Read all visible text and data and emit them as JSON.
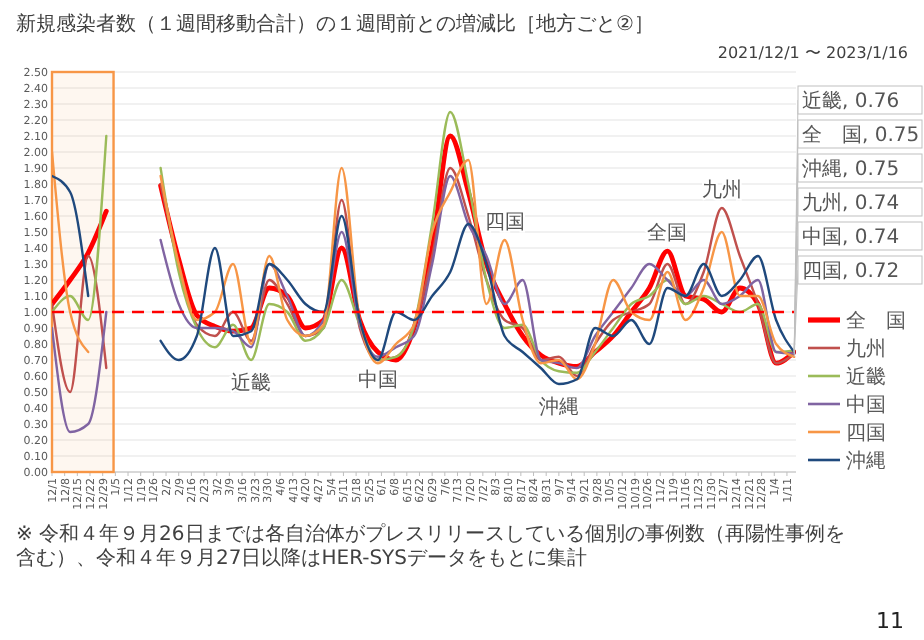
{
  "chart_data": {
    "type": "line",
    "title": "新規感染者数（１週間移動合計）の１週間前との増減比［地方ごと②］",
    "subtitle": "2021/12/1 〜 2023/1/16",
    "x": [
      "2021-12-01",
      "2021-12-11",
      "2021-12-21",
      "2021-12-31",
      "2022-01-10",
      "2022-01-20",
      "2022-01-30",
      "2022-02-09",
      "2022-02-19",
      "2022-03-01",
      "2022-03-11",
      "2022-03-21",
      "2022-03-31",
      "2022-04-10",
      "2022-04-20",
      "2022-04-30",
      "2022-05-10",
      "2022-05-20",
      "2022-05-30",
      "2022-06-09",
      "2022-06-19",
      "2022-06-29",
      "2022-07-09",
      "2022-07-19",
      "2022-07-29",
      "2022-08-08",
      "2022-08-18",
      "2022-08-28",
      "2022-09-07",
      "2022-09-17",
      "2022-09-27",
      "2022-10-07",
      "2022-10-17",
      "2022-10-27",
      "2022-11-06",
      "2022-11-16",
      "2022-11-26",
      "2022-12-06",
      "2022-12-16",
      "2022-12-26",
      "2023-01-05",
      "2023-01-15"
    ],
    "series": [
      {
        "name": "全　国",
        "color": "#ff0000",
        "values": [
          1.05,
          1.2,
          1.37,
          1.63,
          null,
          null,
          1.79,
          1.33,
          0.98,
          0.91,
          0.88,
          0.9,
          1.15,
          1.1,
          0.9,
          0.95,
          1.4,
          0.95,
          0.75,
          0.7,
          0.9,
          1.4,
          2.1,
          1.75,
          1.3,
          1.05,
          0.85,
          0.73,
          0.68,
          0.66,
          0.75,
          0.85,
          1.0,
          1.15,
          1.38,
          1.1,
          1.08,
          1.0,
          1.15,
          1.05,
          0.68,
          0.75
        ]
      },
      {
        "name": "九州",
        "color": "#c0504d",
        "values": [
          1.05,
          0.5,
          1.35,
          0.65,
          null,
          null,
          1.8,
          1.3,
          0.92,
          0.85,
          1.0,
          0.82,
          1.2,
          1.05,
          0.85,
          0.9,
          1.7,
          0.9,
          0.7,
          0.72,
          0.9,
          1.35,
          1.9,
          1.6,
          1.2,
          0.95,
          0.9,
          0.7,
          0.72,
          0.6,
          0.8,
          0.95,
          1.0,
          1.05,
          1.3,
          1.05,
          1.25,
          1.65,
          1.35,
          1.05,
          0.68,
          0.74
        ]
      },
      {
        "name": "近畿",
        "color": "#9bbb59",
        "values": [
          1.0,
          1.1,
          0.95,
          2.1,
          null,
          null,
          1.9,
          1.25,
          0.9,
          0.78,
          0.92,
          0.7,
          1.05,
          1.0,
          0.82,
          0.9,
          1.2,
          0.92,
          0.7,
          0.72,
          0.92,
          1.55,
          2.25,
          1.8,
          1.2,
          0.9,
          0.92,
          0.7,
          0.63,
          0.62,
          0.75,
          0.9,
          1.05,
          1.1,
          1.2,
          1.05,
          1.1,
          1.05,
          1.0,
          1.05,
          0.75,
          0.76
        ]
      },
      {
        "name": "中国",
        "color": "#8064a2",
        "values": [
          0.9,
          0.25,
          0.3,
          1.0,
          null,
          null,
          1.45,
          1.05,
          0.9,
          0.9,
          0.88,
          0.78,
          1.3,
          1.1,
          0.85,
          0.95,
          1.5,
          0.92,
          0.72,
          0.78,
          0.85,
          1.3,
          1.85,
          1.55,
          1.35,
          1.05,
          1.2,
          0.7,
          0.68,
          0.65,
          0.85,
          1.0,
          1.15,
          1.3,
          1.2,
          1.1,
          1.2,
          1.05,
          1.1,
          1.2,
          0.75,
          0.74
        ]
      },
      {
        "name": "四国",
        "color": "#f79646",
        "values": [
          2.0,
          1.0,
          0.75,
          null,
          null,
          null,
          1.85,
          1.3,
          0.95,
          1.0,
          1.3,
          0.8,
          1.35,
          0.95,
          0.85,
          0.92,
          1.9,
          0.95,
          0.68,
          0.8,
          0.92,
          1.5,
          1.75,
          1.95,
          1.05,
          1.45,
          0.95,
          0.68,
          0.7,
          0.58,
          0.8,
          1.2,
          1.0,
          0.95,
          1.25,
          0.95,
          1.15,
          1.5,
          1.1,
          1.1,
          0.8,
          0.72
        ]
      },
      {
        "name": "沖縄",
        "color": "#1f497d",
        "values": [
          1.85,
          1.75,
          1.1,
          null,
          null,
          null,
          0.82,
          0.7,
          0.85,
          1.4,
          0.85,
          0.88,
          1.3,
          1.2,
          1.05,
          1.0,
          1.6,
          0.95,
          0.7,
          1.0,
          0.95,
          1.1,
          1.25,
          1.55,
          1.3,
          0.85,
          0.75,
          0.65,
          0.55,
          0.58,
          0.9,
          0.85,
          0.95,
          0.8,
          1.15,
          1.1,
          1.3,
          1.1,
          1.2,
          1.35,
          0.95,
          0.75
        ]
      }
    ],
    "xlim": [
      "2021-12-01",
      "2023-01-16"
    ],
    "xticks": [
      {
        "value": "2021-12-01",
        "label": "12/1"
      },
      {
        "value": "2021-12-08",
        "label": "12/8"
      },
      {
        "value": "2021-12-15",
        "label": "12/15"
      },
      {
        "value": "2021-12-22",
        "label": "12/22"
      },
      {
        "value": "2021-12-29",
        "label": "12/29"
      },
      {
        "value": "2022-01-05",
        "label": "1/5"
      },
      {
        "value": "2022-01-12",
        "label": "1/12"
      },
      {
        "value": "2022-01-19",
        "label": "1/19"
      },
      {
        "value": "2022-01-26",
        "label": "1/26"
      },
      {
        "value": "2022-02-02",
        "label": "2/2"
      },
      {
        "value": "2022-02-09",
        "label": "2/9"
      },
      {
        "value": "2022-02-16",
        "label": "2/16"
      },
      {
        "value": "2022-02-23",
        "label": "2/23"
      },
      {
        "value": "2022-03-02",
        "label": "3/2"
      },
      {
        "value": "2022-03-09",
        "label": "3/9"
      },
      {
        "value": "2022-03-16",
        "label": "3/16"
      },
      {
        "value": "2022-03-23",
        "label": "3/23"
      },
      {
        "value": "2022-03-30",
        "label": "3/30"
      },
      {
        "value": "2022-04-06",
        "label": "4/6"
      },
      {
        "value": "2022-04-13",
        "label": "4/13"
      },
      {
        "value": "2022-04-20",
        "label": "4/20"
      },
      {
        "value": "2022-04-27",
        "label": "4/27"
      },
      {
        "value": "2022-05-04",
        "label": "5/4"
      },
      {
        "value": "2022-05-11",
        "label": "5/11"
      },
      {
        "value": "2022-05-18",
        "label": "5/18"
      },
      {
        "value": "2022-05-25",
        "label": "5/25"
      },
      {
        "value": "2022-06-01",
        "label": "6/1"
      },
      {
        "value": "2022-06-08",
        "label": "6/8"
      },
      {
        "value": "2022-06-15",
        "label": "6/15"
      },
      {
        "value": "2022-06-22",
        "label": "6/22"
      },
      {
        "value": "2022-06-29",
        "label": "6/29"
      },
      {
        "value": "2022-07-06",
        "label": "7/6"
      },
      {
        "value": "2022-07-13",
        "label": "7/13"
      },
      {
        "value": "2022-07-20",
        "label": "7/20"
      },
      {
        "value": "2022-07-27",
        "label": "7/27"
      },
      {
        "value": "2022-08-03",
        "label": "8/3"
      },
      {
        "value": "2022-08-10",
        "label": "8/10"
      },
      {
        "value": "2022-08-17",
        "label": "8/17"
      },
      {
        "value": "2022-08-24",
        "label": "8/24"
      },
      {
        "value": "2022-08-31",
        "label": "8/31"
      },
      {
        "value": "2022-09-07",
        "label": "9/7"
      },
      {
        "value": "2022-09-14",
        "label": "9/14"
      },
      {
        "value": "2022-09-21",
        "label": "9/21"
      },
      {
        "value": "2022-09-28",
        "label": "9/28"
      },
      {
        "value": "2022-10-05",
        "label": "10/5"
      },
      {
        "value": "2022-10-12",
        "label": "10/12"
      },
      {
        "value": "2022-10-19",
        "label": "10/19"
      },
      {
        "value": "2022-10-26",
        "label": "10/26"
      },
      {
        "value": "2022-11-02",
        "label": "11/2"
      },
      {
        "value": "2022-11-09",
        "label": "11/9"
      },
      {
        "value": "2022-11-16",
        "label": "11/16"
      },
      {
        "value": "2022-11-23",
        "label": "11/23"
      },
      {
        "value": "2022-11-30",
        "label": "11/30"
      },
      {
        "value": "2022-12-07",
        "label": "12/7"
      },
      {
        "value": "2022-12-14",
        "label": "12/14"
      },
      {
        "value": "2022-12-21",
        "label": "12/21"
      },
      {
        "value": "2022-12-28",
        "label": "12/28"
      },
      {
        "value": "2023-01-04",
        "label": "1/4"
      },
      {
        "value": "2023-01-11",
        "label": "1/11"
      }
    ],
    "ylim": [
      0,
      2.5
    ],
    "yticks": [
      {
        "value": 0,
        "label": "0.00"
      },
      {
        "value": 0.1,
        "label": "0.10"
      },
      {
        "value": 0.2,
        "label": "0.20"
      },
      {
        "value": 0.3,
        "label": "0.30"
      },
      {
        "value": 0.4,
        "label": "0.40"
      },
      {
        "value": 0.5,
        "label": "0.50"
      },
      {
        "value": 0.6,
        "label": "0.60"
      },
      {
        "value": 0.7,
        "label": "0.70"
      },
      {
        "value": 0.8,
        "label": "0.80"
      },
      {
        "value": 0.9,
        "label": "0.90"
      },
      {
        "value": 1,
        "label": "1.00"
      },
      {
        "value": 1.1,
        "label": "1.10"
      },
      {
        "value": 1.2,
        "label": "1.20"
      },
      {
        "value": 1.3,
        "label": "1.30"
      },
      {
        "value": 1.4,
        "label": "1.40"
      },
      {
        "value": 1.5,
        "label": "1.50"
      },
      {
        "value": 1.6,
        "label": "1.60"
      },
      {
        "value": 1.7,
        "label": "1.70"
      },
      {
        "value": 1.8,
        "label": "1.80"
      },
      {
        "value": 1.9,
        "label": "1.90"
      },
      {
        "value": 2,
        "label": "2.00"
      },
      {
        "value": 2.1,
        "label": "2.10"
      },
      {
        "value": 2.2,
        "label": "2.20"
      },
      {
        "value": 2.3,
        "label": "2.30"
      },
      {
        "value": 2.4,
        "label": "2.40"
      },
      {
        "value": 2.5,
        "label": "2.50"
      }
    ],
    "grid": "y",
    "legend": "bottom right",
    "marker": "none",
    "line_style": "solid",
    "ref_lines": [
      {
        "axis": "y",
        "value": 1,
        "color": "#ff0000",
        "line_style": "dashed"
      }
    ],
    "bands": [
      {
        "axis": "x",
        "from": "2021-12-01",
        "to": "2022-01-04",
        "color": "#f79646"
      }
    ],
    "annotations": [
      {
        "text": "近畿, 0.76",
        "x": "2023-01-15",
        "y": 0.76
      },
      {
        "text": "全　国, 0.75",
        "x": "2023-01-15",
        "y": 0.75
      },
      {
        "text": "沖縄, 0.75",
        "x": "2023-01-15",
        "y": 0.75
      },
      {
        "text": "九州, 0.74",
        "x": "2023-01-15",
        "y": 0.74
      },
      {
        "text": "中国, 0.74",
        "x": "2023-01-15",
        "y": 0.74
      },
      {
        "text": "四国, 0.72",
        "x": "2023-01-15",
        "y": 0.72
      },
      {
        "text": "近畿",
        "x": "2022-03-21",
        "y": 0.7
      },
      {
        "text": "中国",
        "x": "2022-05-30",
        "y": 0.72
      },
      {
        "text": "四国",
        "x": "2022-08-08",
        "y": 1.45
      },
      {
        "text": "九州",
        "x": "2022-12-06",
        "y": 1.65
      },
      {
        "text": "全国",
        "x": "2022-11-06",
        "y": 1.38
      },
      {
        "text": "沖縄",
        "x": "2022-09-07",
        "y": 0.55
      },
      "※ 令和４年９月26日までは各自治体がプレスリリースしている個別の事例数（再陽性事例を含む）、令和４年９月27日以降はHER-SYSデータをもとに集計",
      "11"
    ]
  }
}
